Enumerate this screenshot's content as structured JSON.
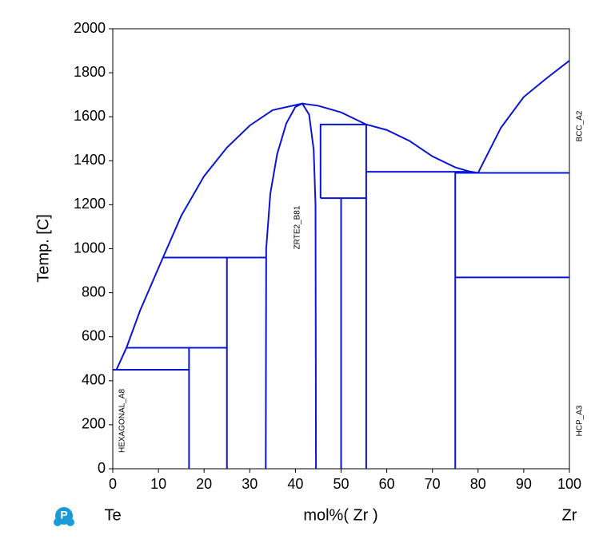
{
  "chart_data": {
    "type": "line",
    "color": "#0a14d4",
    "y_label": "Temp. [C]",
    "x_label": "mol%( Zr )",
    "x_left_label": "Te",
    "x_right_label": "Zr",
    "annotations": [
      "HEXAGONAL_A8",
      "ZRTE2_B81",
      "BCC_A2",
      "HCP_A3"
    ],
    "xlim": [
      0,
      100
    ],
    "xticks": [
      0,
      10,
      20,
      30,
      40,
      50,
      60,
      70,
      80,
      90,
      100
    ],
    "ylim": [
      0,
      2000
    ],
    "yticks": [
      0,
      200,
      400,
      600,
      800,
      1000,
      1200,
      1400,
      1600,
      1800,
      2000
    ],
    "series": [
      {
        "x": [
          0.8,
          3,
          6,
          11,
          15,
          20,
          25,
          30,
          35,
          41.5,
          45,
          50,
          55.5,
          60,
          65,
          70,
          75,
          78,
          80
        ],
        "values": [
          450,
          550,
          720,
          960,
          1150,
          1330,
          1460,
          1560,
          1630,
          1660,
          1650,
          1620,
          1565,
          1540,
          1490,
          1420,
          1370,
          1352,
          1345
        ]
      },
      {
        "x": [
          80,
          85,
          90,
          95,
          100
        ],
        "values": [
          1345,
          1550,
          1690,
          1775,
          1855
        ]
      },
      {
        "x": [
          33.5,
          33.6,
          34.5,
          36,
          38,
          40,
          41.5,
          43,
          44,
          44.4,
          44.5
        ],
        "values": [
          0,
          1000,
          1250,
          1430,
          1570,
          1645,
          1660,
          1610,
          1450,
          1200,
          0
        ]
      },
      {
        "x": [
          0,
          16.7
        ],
        "values": [
          450,
          450
        ]
      },
      {
        "x": [
          16.7,
          16.7
        ],
        "values": [
          0,
          550
        ]
      },
      {
        "x": [
          3,
          25
        ],
        "values": [
          550,
          550
        ]
      },
      {
        "x": [
          25,
          25
        ],
        "values": [
          0,
          960
        ]
      },
      {
        "x": [
          11,
          33.5
        ],
        "values": [
          960,
          960
        ]
      },
      {
        "x": [
          45.5,
          45.5,
          55.5
        ],
        "values": [
          1230,
          1565,
          1565
        ]
      },
      {
        "x": [
          45.5,
          55.5
        ],
        "values": [
          1230,
          1230
        ]
      },
      {
        "x": [
          50,
          50
        ],
        "values": [
          0,
          1230
        ]
      },
      {
        "x": [
          55.5,
          55.5
        ],
        "values": [
          0,
          1565
        ]
      },
      {
        "x": [
          55.5,
          78
        ],
        "values": [
          1350,
          1350
        ]
      },
      {
        "x": [
          75,
          75
        ],
        "values": [
          0,
          1350
        ]
      },
      {
        "x": [
          75,
          100
        ],
        "values": [
          1345,
          1345
        ]
      },
      {
        "x": [
          75,
          100
        ],
        "values": [
          870,
          870
        ]
      }
    ]
  }
}
